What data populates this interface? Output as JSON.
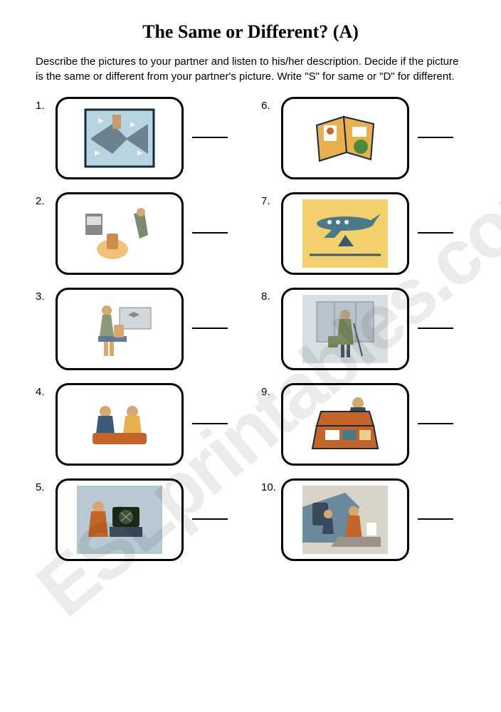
{
  "title": "The Same or Different? (A)",
  "instructions": "Describe the pictures to your partner and listen to his/her description. Decide if the picture is the same or different from your partner's picture. Write \"S\" for same or \"D\" for different.",
  "watermark": "ESLprintables.com",
  "left": [
    {
      "n": "1.",
      "clip": "airport-aerial"
    },
    {
      "n": "2.",
      "clip": "baggage-claim"
    },
    {
      "n": "3.",
      "clip": "traveler-waiting"
    },
    {
      "n": "4.",
      "clip": "passengers-seated"
    },
    {
      "n": "5.",
      "clip": "control-room"
    }
  ],
  "right": [
    {
      "n": "6.",
      "clip": "passport"
    },
    {
      "n": "7.",
      "clip": "airplane"
    },
    {
      "n": "8.",
      "clip": "traveler-terminal"
    },
    {
      "n": "9.",
      "clip": "briefcase"
    },
    {
      "n": "10.",
      "clip": "boarding-plane"
    }
  ],
  "clip_colors": {
    "airport-aerial": {
      "bg": "#b8d4de",
      "a": "#5a6b7c",
      "b": "#c49c6e",
      "c": "#f5f2e8"
    },
    "baggage-claim": {
      "bg": "#ffffff",
      "a": "#f2c078",
      "b": "#7a8b6f",
      "c": "#c98c4a"
    },
    "traveler-waiting": {
      "bg": "#ffffff",
      "a": "#8a9b7c",
      "b": "#d4a86e",
      "c": "#5d7c8f"
    },
    "passengers-seated": {
      "bg": "#ffffff",
      "a": "#e8b04e",
      "b": "#3b5978",
      "c": "#c46428"
    },
    "control-room": {
      "bg": "#b8c9d4",
      "a": "#c46428",
      "b": "#5a6b4f",
      "c": "#3b4b5c"
    },
    "passport": {
      "bg": "#ffffff",
      "a": "#e8b04e",
      "b": "#4a8a3c",
      "c": "#c46428"
    },
    "airplane": {
      "bg": "#f4d06c",
      "a": "#4a7a8a",
      "b": "#3b5968",
      "c": "#ffffff"
    },
    "traveler-terminal": {
      "bg": "#d8e0e4",
      "a": "#7a8b5f",
      "b": "#b89c7e",
      "c": "#4a5b6c"
    },
    "briefcase": {
      "bg": "#ffffff",
      "a": "#c46428",
      "b": "#4a7a8a",
      "c": "#ffffff"
    },
    "boarding-plane": {
      "bg": "#d8d4c8",
      "a": "#6a8a9c",
      "b": "#c46428",
      "c": "#ffffff"
    }
  }
}
